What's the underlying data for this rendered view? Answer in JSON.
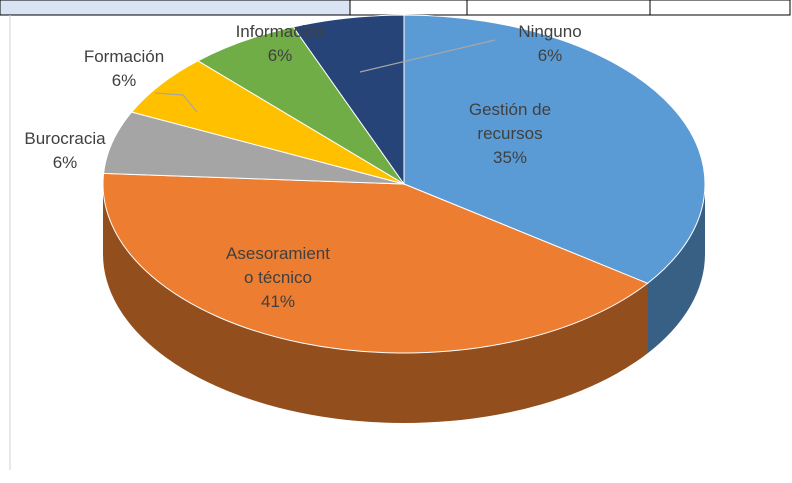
{
  "chart_data": {
    "type": "pie3d",
    "categories": [
      "Gestión de recursos",
      "Asesoramiento técnico",
      "Burocracia",
      "Formación",
      "Información",
      "Ninguno"
    ],
    "values": [
      35,
      41,
      6,
      6,
      6,
      6
    ],
    "value_labels": [
      "35%",
      "41%",
      "6%",
      "6%",
      "6%",
      "6%"
    ],
    "colors": [
      "#5b9bd5",
      "#ed7d31",
      "#a5a5a5",
      "#ffc000",
      "#70ad47",
      "#264478"
    ]
  }
}
